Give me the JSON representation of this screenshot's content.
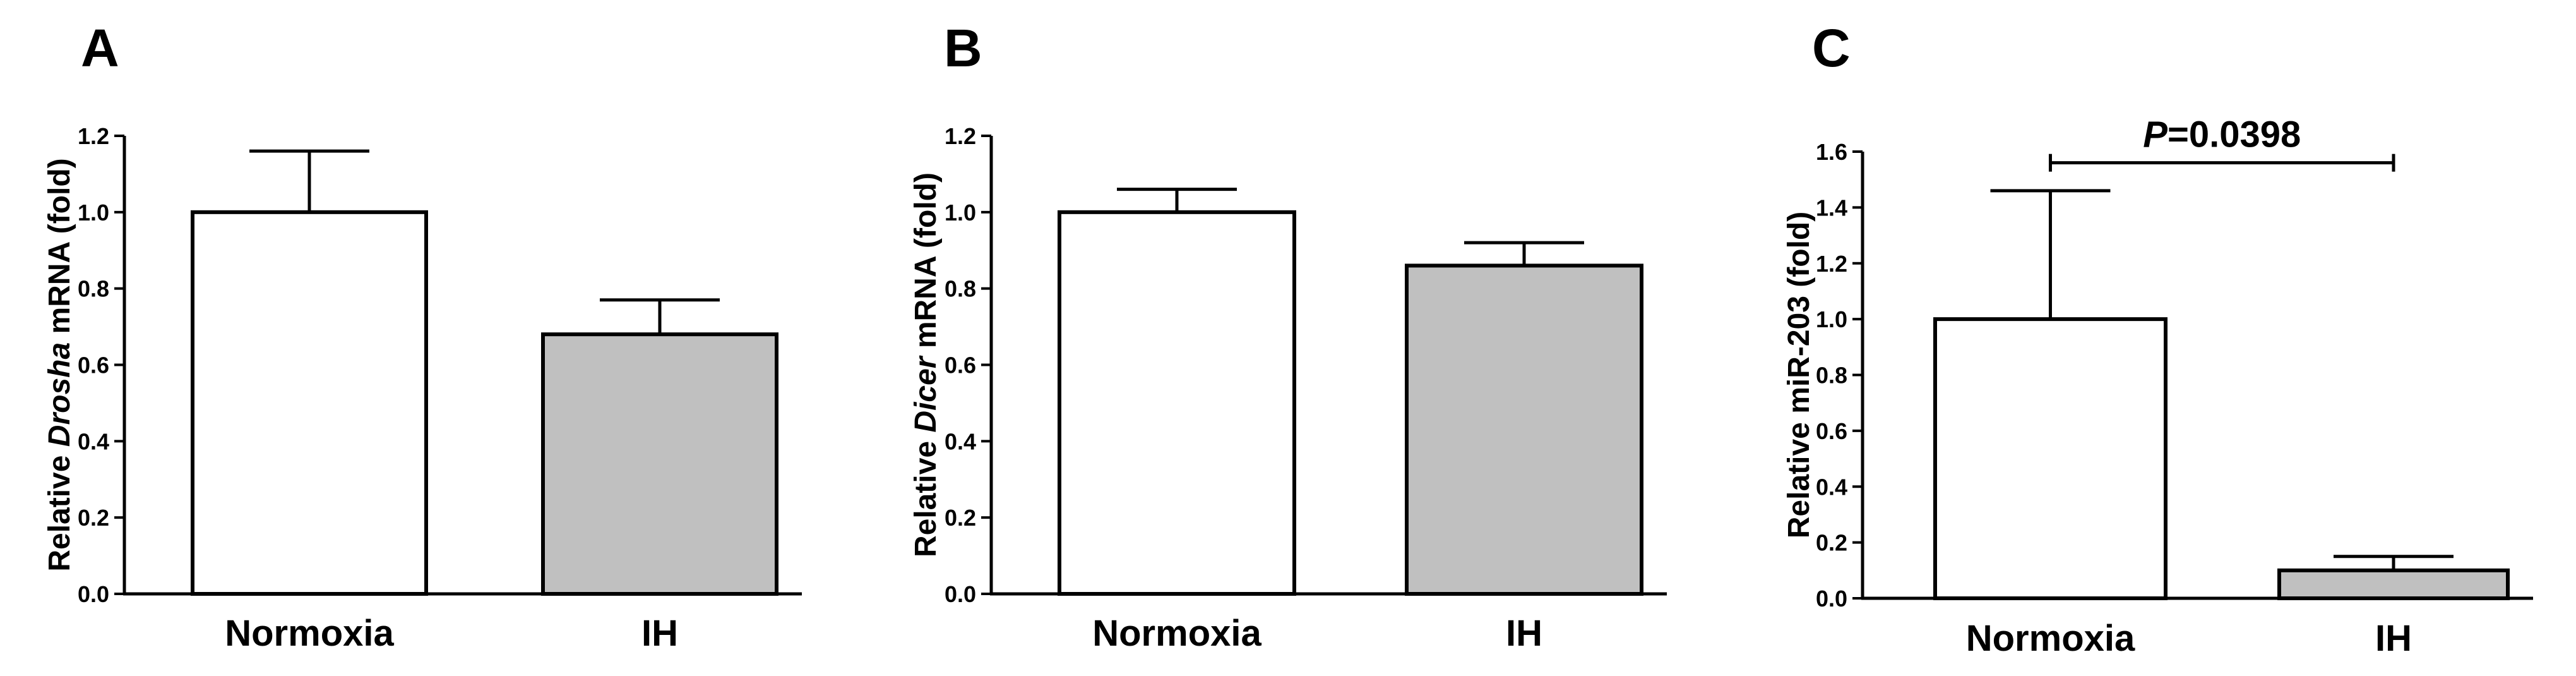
{
  "chart_data": [
    {
      "panel": "A",
      "type": "bar",
      "categories": [
        "Normoxia",
        "IH"
      ],
      "values": [
        1.0,
        0.68
      ],
      "errors": [
        0.16,
        0.09
      ],
      "colors": [
        "#ffffff",
        "#c0c0c0"
      ],
      "ylabel_pre": "Relative ",
      "ylabel_ital": "Drosha",
      "ylabel_post": " mRNA (fold)",
      "ylim": [
        0,
        1.2
      ],
      "yticks": [
        "0.0",
        "0.2",
        "0.4",
        "0.6",
        "0.8",
        "1.0",
        "1.2"
      ],
      "tick_step": 0.2
    },
    {
      "panel": "B",
      "type": "bar",
      "categories": [
        "Normoxia",
        "IH"
      ],
      "values": [
        1.0,
        0.86
      ],
      "errors": [
        0.06,
        0.06
      ],
      "colors": [
        "#ffffff",
        "#c0c0c0"
      ],
      "ylabel_pre": "Relative ",
      "ylabel_ital": "Dicer",
      "ylabel_post": " mRNA (fold)",
      "ylim": [
        0,
        1.2
      ],
      "yticks": [
        "0.0",
        "0.2",
        "0.4",
        "0.6",
        "0.8",
        "1.0",
        "1.2"
      ],
      "tick_step": 0.2
    },
    {
      "panel": "C",
      "type": "bar",
      "categories": [
        "Normoxia",
        "IH"
      ],
      "values": [
        1.0,
        0.1
      ],
      "errors": [
        0.46,
        0.05
      ],
      "colors": [
        "#ffffff",
        "#c0c0c0"
      ],
      "ylabel_pre": "Relative miR-203 (fold)",
      "ylabel_ital": "",
      "ylabel_post": "",
      "ylim": [
        0,
        1.6
      ],
      "yticks": [
        "0.0",
        "0.2",
        "0.4",
        "0.6",
        "0.8",
        "1.0",
        "1.2",
        "1.4",
        "1.6"
      ],
      "tick_step": 0.2,
      "annotation": {
        "p_ital": "P",
        "p_rest": "=0.0398",
        "y": 1.56
      }
    }
  ]
}
